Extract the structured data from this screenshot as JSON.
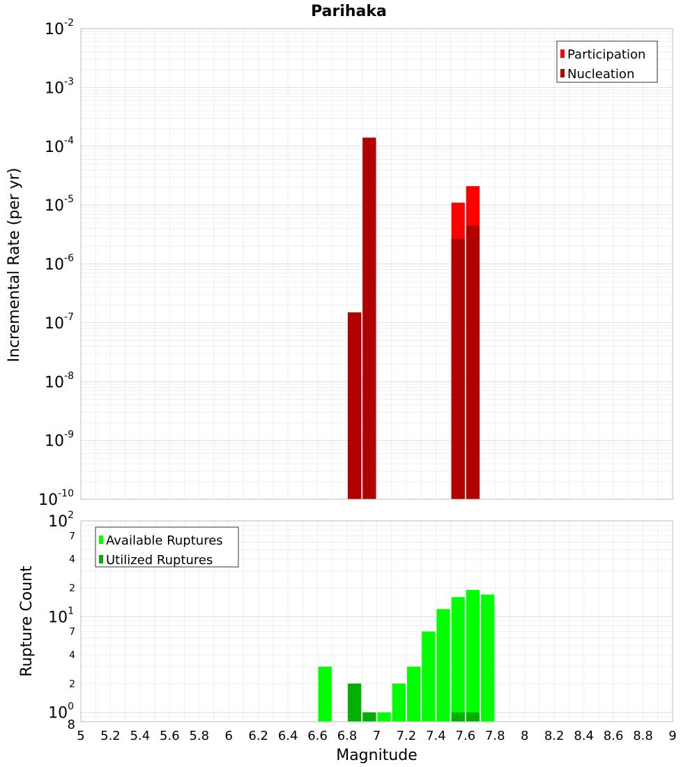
{
  "chart_data": [
    {
      "type": "bar",
      "title": "Parihaka",
      "xlabel": "",
      "ylabel": "Incremental Rate (per yr)",
      "yscale": "log",
      "xlim": [
        5,
        9
      ],
      "ylim": [
        1e-10,
        0.01
      ],
      "bin_width": 0.1,
      "grid": true,
      "legend_position": "top-right",
      "y_ticks": [
        {
          "base": "10",
          "exp": "-2",
          "value": 0.01
        },
        {
          "base": "10",
          "exp": "-3",
          "value": 0.001
        },
        {
          "base": "10",
          "exp": "-4",
          "value": 0.0001
        },
        {
          "base": "10",
          "exp": "-5",
          "value": 1e-05
        },
        {
          "base": "10",
          "exp": "-6",
          "value": 1e-06
        },
        {
          "base": "10",
          "exp": "-7",
          "value": 1e-07
        },
        {
          "base": "10",
          "exp": "-8",
          "value": 1e-08
        },
        {
          "base": "10",
          "exp": "-9",
          "value": 1e-09
        },
        {
          "base": "10",
          "exp": "-10",
          "value": 1e-10
        }
      ],
      "series": [
        {
          "name": "Participation",
          "color": "#ff0000",
          "x": [
            6.85,
            6.95,
            7.55,
            7.65
          ],
          "values": [
            1.5e-07,
            0.00014,
            1.1e-05,
            2.1e-05
          ]
        },
        {
          "name": "Nucleation",
          "color": "#b00000",
          "x": [
            6.85,
            6.95,
            7.55,
            7.65
          ],
          "values": [
            1.5e-07,
            0.00014,
            2.7e-06,
            4.5e-06
          ]
        }
      ]
    },
    {
      "type": "bar",
      "title": "",
      "xlabel": "Magnitude",
      "ylabel": "Rupture Count",
      "yscale": "log",
      "xlim": [
        5,
        9
      ],
      "ylim": [
        0.8,
        100
      ],
      "bin_width": 0.1,
      "grid": true,
      "legend_position": "top-left",
      "x_ticks": [
        "5",
        "5.2",
        "5.4",
        "5.6",
        "5.8",
        "6",
        "6.2",
        "6.4",
        "6.6",
        "6.8",
        "7",
        "7.2",
        "7.4",
        "7.6",
        "7.8",
        "8",
        "8.2",
        "8.4",
        "8.6",
        "8.8",
        "9"
      ],
      "y_ticks": [
        {
          "base": "10",
          "exp": "2",
          "value": 100
        },
        {
          "base": "10",
          "exp": "1",
          "value": 10
        },
        {
          "base": "10",
          "exp": "0",
          "value": 1
        }
      ],
      "y_minor_ticks": [
        {
          "label": "7",
          "value": 70
        },
        {
          "label": "4",
          "value": 40
        },
        {
          "label": "2",
          "value": 20
        },
        {
          "label": "7",
          "value": 7
        },
        {
          "label": "4",
          "value": 4
        },
        {
          "label": "2",
          "value": 2
        }
      ],
      "y_bottom_label": "8",
      "series": [
        {
          "name": "Available Ruptures",
          "color": "#00ff00",
          "x": [
            6.65,
            6.95,
            7.05,
            7.15,
            7.25,
            7.35,
            7.45,
            7.55,
            7.65,
            7.75
          ],
          "values": [
            3,
            1,
            1,
            2,
            3,
            7,
            12,
            16,
            19,
            17
          ]
        },
        {
          "name": "Utilized Ruptures",
          "color": "#00b000",
          "x": [
            6.85,
            6.95,
            7.55,
            7.65
          ],
          "values": [
            2,
            1,
            1,
            1
          ]
        }
      ]
    }
  ]
}
